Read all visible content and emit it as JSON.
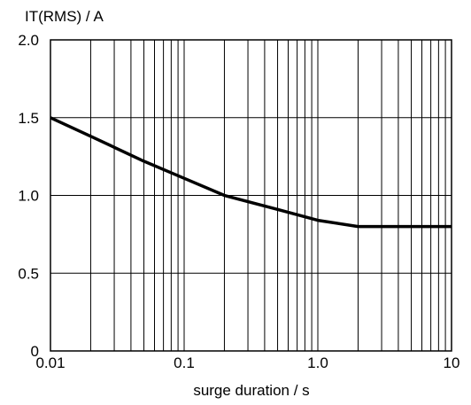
{
  "chart_data": {
    "type": "line",
    "title": "",
    "ylabel": "IT(RMS) / A",
    "xlabel": "surge duration / s",
    "x_scale": "log",
    "xlim": [
      0.01,
      10
    ],
    "ylim": [
      0,
      2.0
    ],
    "grid": true,
    "x_ticks": [
      0.01,
      0.1,
      1.0,
      10
    ],
    "x_tick_labels": [
      "0.01",
      "0.1",
      "1.0",
      "10"
    ],
    "y_ticks": [
      0,
      0.5,
      1.0,
      1.5,
      2.0
    ],
    "y_tick_labels": [
      "0",
      "0.5",
      "1.0",
      "1.5",
      "2.0"
    ],
    "series": [
      {
        "x": [
          0.01,
          0.02,
          0.05,
          0.1,
          0.2,
          0.5,
          1.0,
          2.0,
          5.0,
          10
        ],
        "y": [
          1.5,
          1.38,
          1.22,
          1.11,
          1.0,
          0.91,
          0.84,
          0.8,
          0.8,
          0.8
        ]
      }
    ]
  }
}
